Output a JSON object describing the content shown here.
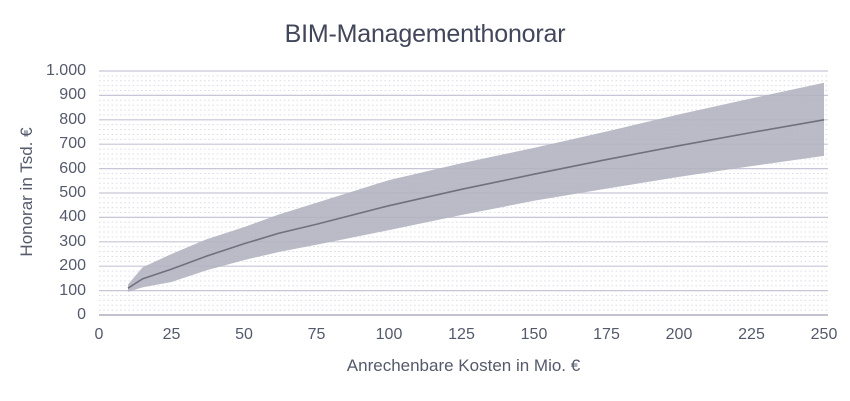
{
  "chart_data": {
    "type": "area",
    "title": "BIM-Managementhonorar",
    "xlabel": "Anrechenbare Kosten in Mio. €",
    "ylabel": "Honorar in Tsd. €",
    "xlim": [
      0,
      250
    ],
    "ylim": [
      0,
      1000
    ],
    "x_ticks": [
      0,
      25,
      50,
      75,
      100,
      125,
      150,
      175,
      200,
      225,
      250
    ],
    "x_tick_labels": [
      "0",
      "25",
      "50",
      "75",
      "100",
      "125",
      "150",
      "175",
      "200",
      "225",
      "250"
    ],
    "y_ticks": [
      0,
      100,
      200,
      300,
      400,
      500,
      600,
      700,
      800,
      900,
      1000
    ],
    "y_tick_labels": [
      "0",
      "100",
      "200",
      "300",
      "400",
      "500",
      "600",
      "700",
      "800",
      "900",
      "1.000"
    ],
    "grid": {
      "major_step": 100,
      "minor_step": 20,
      "vertical_gridlines": false
    },
    "legend": "none",
    "band": {
      "x": [
        10,
        15,
        25,
        37,
        50,
        62,
        75,
        100,
        125,
        150,
        175,
        200,
        225,
        250
      ],
      "lower": [
        95,
        113,
        135,
        183,
        225,
        258,
        288,
        348,
        410,
        468,
        518,
        566,
        610,
        652
      ],
      "upper": [
        125,
        195,
        250,
        310,
        360,
        412,
        460,
        553,
        622,
        685,
        752,
        822,
        888,
        952
      ]
    },
    "center_line": {
      "x": [
        10,
        15,
        25,
        37,
        50,
        62,
        75,
        100,
        125,
        150,
        175,
        200,
        225,
        250
      ],
      "y": [
        110,
        148,
        188,
        241,
        292,
        335,
        372,
        448,
        515,
        577,
        637,
        694,
        748,
        800
      ]
    },
    "colors": {
      "band_fill": "#b2b2bf",
      "center_line": "#70707e",
      "grid_major": "#c6c6d6",
      "grid_minor": "#dcdce9",
      "axis_line": "#adadc0",
      "tick_text": "#545a6b",
      "title_text": "#42465a"
    }
  }
}
